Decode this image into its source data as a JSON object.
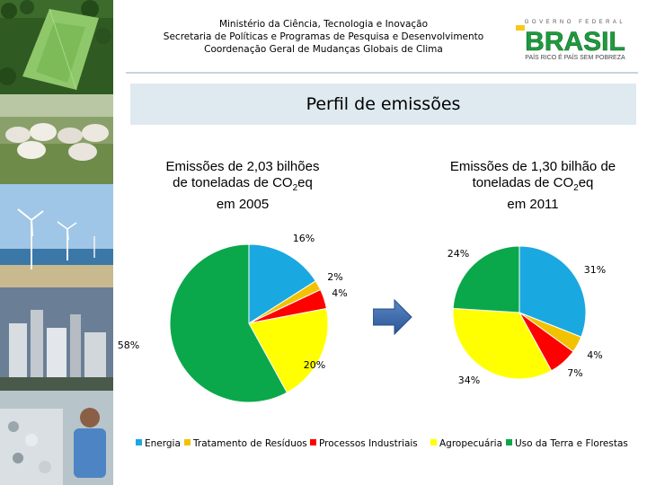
{
  "header": {
    "line1": "Ministério da Ciência, Tecnologia e Inovação",
    "line2": "Secretaria de Políticas e Programas de Pesquisa e Desenvolvimento",
    "line3": "Coordenação Geral de Mudanças Globais de Clima"
  },
  "logo": {
    "top_text": "GOVERNO FEDERAL",
    "word": "BRASIL",
    "tagline": "PAÍS RICO É PAÍS SEM POBREZA"
  },
  "title": "Perfil de emissões",
  "colors": {
    "Energia": "#1aa8e0",
    "Tratamento de Resíduos": "#f2c200",
    "Processos Industriais": "#ff0000",
    "Agropecuária": "#ffff00",
    "Uso da Terra e Florestas": "#0aa84a"
  },
  "chart_data": [
    {
      "type": "pie",
      "title": "Emissões de 2,03 bilhões de toneladas de CO2eq em 2005",
      "title_parts": {
        "l1": "Emissões de 2,03 bilhões",
        "l2a": "de toneladas de CO",
        "l2sub": "2",
        "l2b": "eq",
        "l3": "em 2005"
      },
      "categories": [
        "Energia",
        "Tratamento de Resíduos",
        "Processos Industriais",
        "Agropecuária",
        "Uso da Terra e Florestas"
      ],
      "values": [
        16,
        2,
        4,
        20,
        58
      ],
      "labels": [
        "16%",
        "2%",
        "4%",
        "20%",
        "58%"
      ]
    },
    {
      "type": "pie",
      "title": "Emissões de 1,30 bilhão de toneladas de CO2eq em 2011",
      "title_parts": {
        "l1": "Emissões de 1,30 bilhão de",
        "l2a": "toneladas de CO",
        "l2sub": "2",
        "l2b": "eq",
        "l3": "em 2011"
      },
      "categories": [
        "Energia",
        "Tratamento de Resíduos",
        "Processos Industriais",
        "Agropecuária",
        "Uso da Terra e Florestas"
      ],
      "values": [
        31,
        4,
        7,
        34,
        24
      ],
      "labels": [
        "31%",
        "4%",
        "7%",
        "34%",
        "24%"
      ]
    }
  ],
  "legend": [
    "Energia",
    "Tratamento de Resíduos",
    "Processos Industriais",
    "Agropecuária",
    "Uso da Terra e Florestas"
  ]
}
